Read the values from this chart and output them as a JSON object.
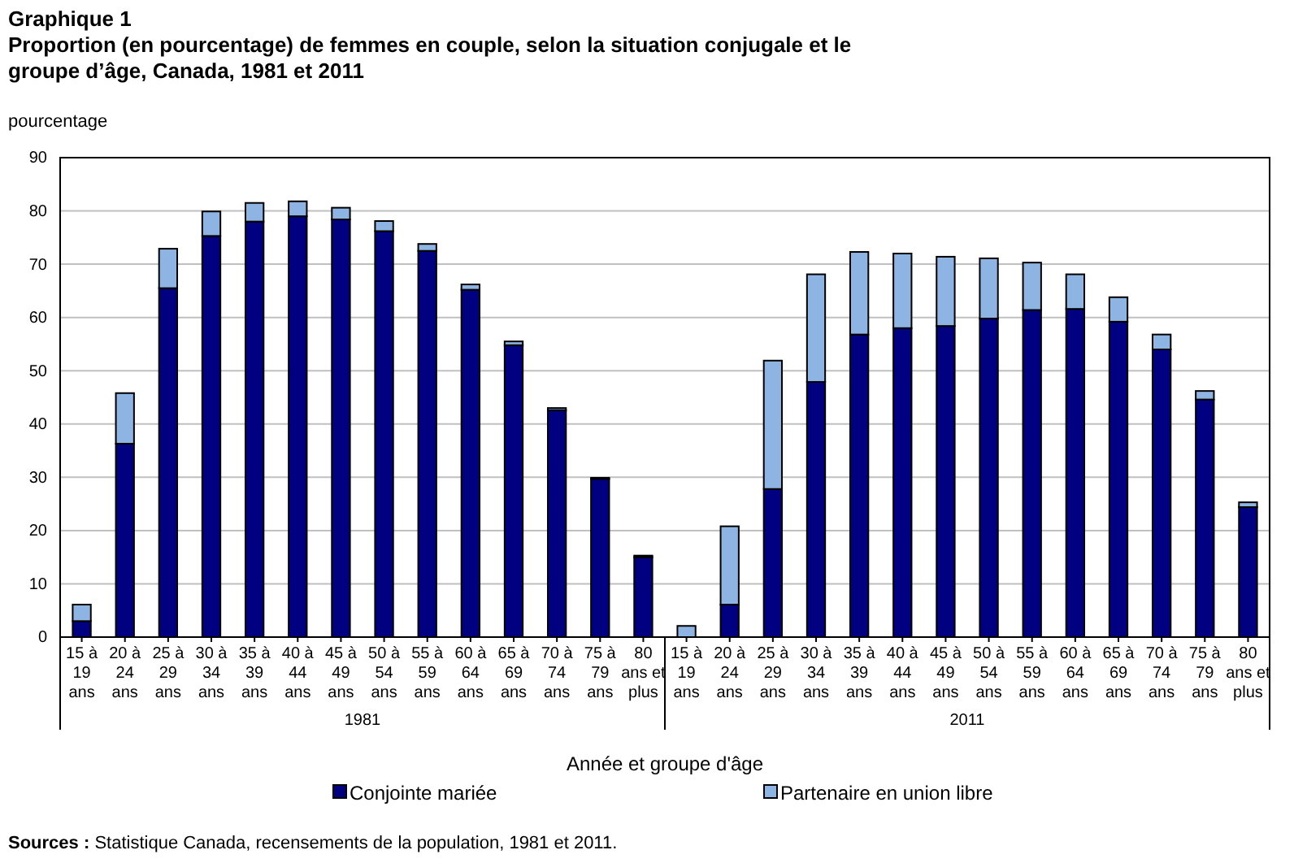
{
  "chart_data": {
    "type": "bar",
    "stacked": true,
    "title": "Graphique 1",
    "subtitle": "Proportion (en pourcentage) de femmes en couple, selon la situation conjugale et le groupe d’âge, Canada, 1981 et 2011",
    "ylabel": "pourcentage",
    "xlabel": "Année et groupe d'âge",
    "categories": [
      "15 à 19 ans",
      "20 à 24 ans",
      "25 à 29 ans",
      "30 à 34 ans",
      "35 à 39 ans",
      "40 à 44 ans",
      "45 à 49 ans",
      "50 à 54 ans",
      "55 à 59 ans",
      "60 à 64 ans",
      "65 à 69 ans",
      "70 à 74 ans",
      "75 à 79 ans",
      "80 ans et plus",
      "15 à 19 ans",
      "20 à 24 ans",
      "25 à 29 ans",
      "30 à 34 ans",
      "35 à 39 ans",
      "40 à 44 ans",
      "45 à 49 ans",
      "50 à 54 ans",
      "55 à 59 ans",
      "60 à 64 ans",
      "65 à 69 ans",
      "70 à 74 ans",
      "75 à 79 ans",
      "80 ans et plus"
    ],
    "series": [
      {
        "name": "Conjointe mariée",
        "color": "#000080",
        "values": [
          3.0,
          36.3,
          65.5,
          75.3,
          78.0,
          79.0,
          78.4,
          76.2,
          72.5,
          65.2,
          54.8,
          42.6,
          29.7,
          15.0,
          null,
          6.1,
          27.8,
          47.9,
          56.8,
          58.0,
          58.4,
          59.8,
          61.4,
          61.6,
          59.2,
          54.0,
          44.6,
          24.4
        ]
      },
      {
        "name": "Partenaire en union libre",
        "color": "#8eb4e3",
        "values": [
          3.1,
          9.5,
          7.4,
          4.6,
          3.5,
          2.8,
          2.2,
          1.9,
          1.3,
          1.0,
          0.7,
          0.4,
          0.2,
          0.3,
          2.1,
          14.7,
          24.1,
          20.2,
          15.5,
          14.0,
          13.0,
          11.3,
          8.9,
          6.5,
          4.6,
          2.8,
          1.6,
          0.9
        ]
      }
    ],
    "ylim": [
      0,
      90
    ],
    "yticks": [
      0,
      10,
      20,
      30,
      40,
      50,
      60,
      70,
      80,
      90
    ],
    "grid": "y",
    "legend": "bottom",
    "annotations": [
      "1981",
      "2011",
      "Sources : Statistique Canada, recensements de la population, 1981 et 2011."
    ]
  }
}
